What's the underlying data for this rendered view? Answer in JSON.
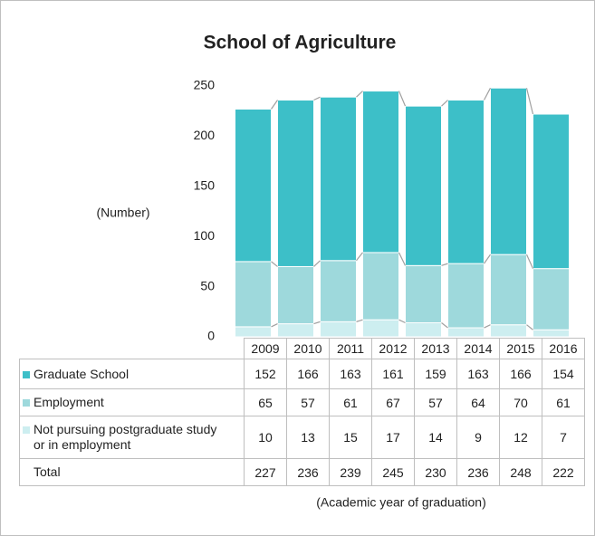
{
  "chart_data": {
    "type": "bar",
    "stacked": true,
    "title": "School of Agriculture",
    "y_label": "(Number)",
    "x_label": "(Academic year of graduation)",
    "categories": [
      "2009",
      "2010",
      "2011",
      "2012",
      "2013",
      "2014",
      "2015",
      "2016"
    ],
    "series": [
      {
        "name": "Graduate School",
        "color": "#3dbfc8",
        "values": [
          152,
          166,
          163,
          161,
          159,
          163,
          166,
          154
        ]
      },
      {
        "name": "Employment",
        "color": "#9ed9dc",
        "values": [
          65,
          57,
          61,
          67,
          57,
          64,
          70,
          61
        ]
      },
      {
        "name": "Not pursuing postgraduate study or in employment",
        "color": "#cdeef0",
        "values": [
          10,
          13,
          15,
          17,
          14,
          9,
          12,
          7
        ]
      }
    ],
    "total": {
      "name": "Total",
      "values": [
        227,
        236,
        239,
        245,
        230,
        236,
        248,
        222
      ]
    },
    "ylim": [
      0,
      250
    ],
    "yticks": [
      0,
      50,
      100,
      150,
      200,
      250
    ],
    "grid": false
  }
}
